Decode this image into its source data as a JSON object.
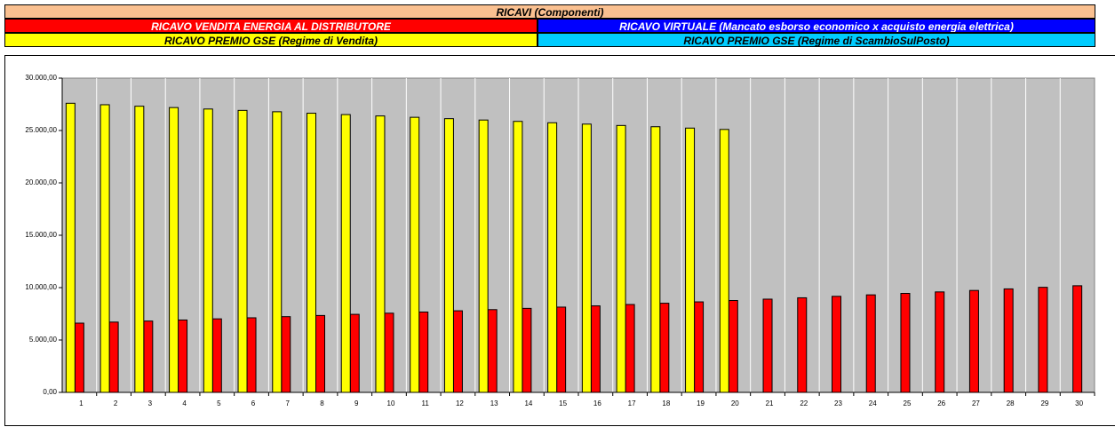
{
  "header": {
    "title": "RICAVI (Componenti)"
  },
  "chart_data": {
    "type": "bar",
    "categories": [
      "1",
      "2",
      "3",
      "4",
      "5",
      "6",
      "7",
      "8",
      "9",
      "10",
      "11",
      "12",
      "13",
      "14",
      "15",
      "16",
      "17",
      "18",
      "19",
      "20",
      "21",
      "22",
      "23",
      "24",
      "25",
      "26",
      "27",
      "28",
      "29",
      "30"
    ],
    "series": [
      {
        "name": "RICAVO VENDITA ENERGIA AL DISTRIBUTORE",
        "color": "#ff0000",
        "values": [
          6610,
          6710,
          6810,
          6910,
          7020,
          7120,
          7230,
          7340,
          7450,
          7560,
          7670,
          7790,
          7900,
          8020,
          8140,
          8260,
          8390,
          8510,
          8640,
          8770,
          8900,
          9030,
          9170,
          9310,
          9450,
          9590,
          9730,
          9880,
          10030,
          10180
        ]
      },
      {
        "name": "RICAVO VIRTUALE (Mancato esborso economico x acquisto energia elettrica)",
        "color": "#0000ff",
        "values": [
          null,
          null,
          null,
          null,
          null,
          null,
          null,
          null,
          null,
          null,
          null,
          null,
          null,
          null,
          null,
          null,
          null,
          null,
          null,
          null,
          null,
          null,
          null,
          null,
          null,
          null,
          null,
          null,
          null,
          null
        ]
      },
      {
        "name": "RICAVO PREMIO GSE (Regime di Vendita)",
        "color": "#ffff00",
        "values": [
          27600,
          27460,
          27320,
          27190,
          27050,
          26920,
          26790,
          26650,
          26520,
          26390,
          26260,
          26130,
          26000,
          25870,
          25740,
          25610,
          25480,
          25360,
          25230,
          25100,
          null,
          null,
          null,
          null,
          null,
          null,
          null,
          null,
          null,
          null
        ]
      },
      {
        "name": "RICAVO PREMIO GSE (Regime di ScambioSulPosto)",
        "color": "#00ccff",
        "values": [
          null,
          null,
          null,
          null,
          null,
          null,
          null,
          null,
          null,
          null,
          null,
          null,
          null,
          null,
          null,
          null,
          null,
          null,
          null,
          null,
          null,
          null,
          null,
          null,
          null,
          null,
          null,
          null,
          null,
          null
        ]
      }
    ],
    "ylim": [
      0,
      30000
    ],
    "yticks": [
      {
        "value": 0,
        "label": "0,00"
      },
      {
        "value": 5000,
        "label": "5.000,00"
      },
      {
        "value": 10000,
        "label": "10.000,00"
      },
      {
        "value": 15000,
        "label": "15.000,00"
      },
      {
        "value": 20000,
        "label": "20.000,00"
      },
      {
        "value": 25000,
        "label": "25.000,00"
      },
      {
        "value": 30000,
        "label": "30.000,00"
      }
    ]
  }
}
